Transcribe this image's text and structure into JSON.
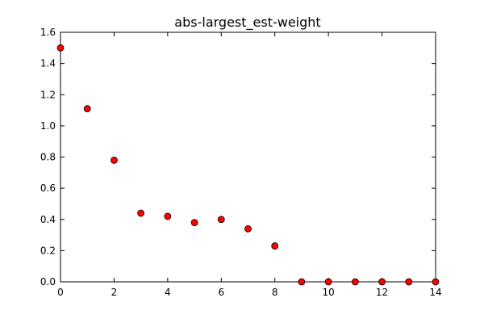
{
  "chart_data": {
    "type": "scatter",
    "title": "abs-largest_est-weight",
    "xlabel": "",
    "ylabel": "",
    "xlim": [
      0,
      14
    ],
    "ylim": [
      0,
      1.6
    ],
    "x_ticks": [
      0,
      2,
      4,
      6,
      8,
      10,
      12,
      14
    ],
    "y_ticks": [
      0.0,
      0.2,
      0.4,
      0.6,
      0.8,
      1.0,
      1.2,
      1.4,
      1.6
    ],
    "x_tick_labels": [
      "0",
      "2",
      "4",
      "6",
      "8",
      "10",
      "12",
      "14"
    ],
    "y_tick_labels": [
      "0.0",
      "0.2",
      "0.4",
      "0.6",
      "0.8",
      "1.0",
      "1.2",
      "1.4",
      "1.6"
    ],
    "grid": false,
    "series": [
      {
        "marker_color": "#ff0000",
        "edge_color": "#000000",
        "points": [
          {
            "x": 0,
            "y": 1.5
          },
          {
            "x": 1,
            "y": 1.11
          },
          {
            "x": 2,
            "y": 0.78
          },
          {
            "x": 3,
            "y": 0.44
          },
          {
            "x": 4,
            "y": 0.42
          },
          {
            "x": 5,
            "y": 0.38
          },
          {
            "x": 6,
            "y": 0.4
          },
          {
            "x": 7,
            "y": 0.34
          },
          {
            "x": 8,
            "y": 0.23
          },
          {
            "x": 9,
            "y": 0.0
          },
          {
            "x": 10,
            "y": 0.0
          },
          {
            "x": 11,
            "y": 0.0
          },
          {
            "x": 12,
            "y": 0.0
          },
          {
            "x": 13,
            "y": 0.0
          },
          {
            "x": 14,
            "y": 0.0
          }
        ]
      }
    ]
  }
}
